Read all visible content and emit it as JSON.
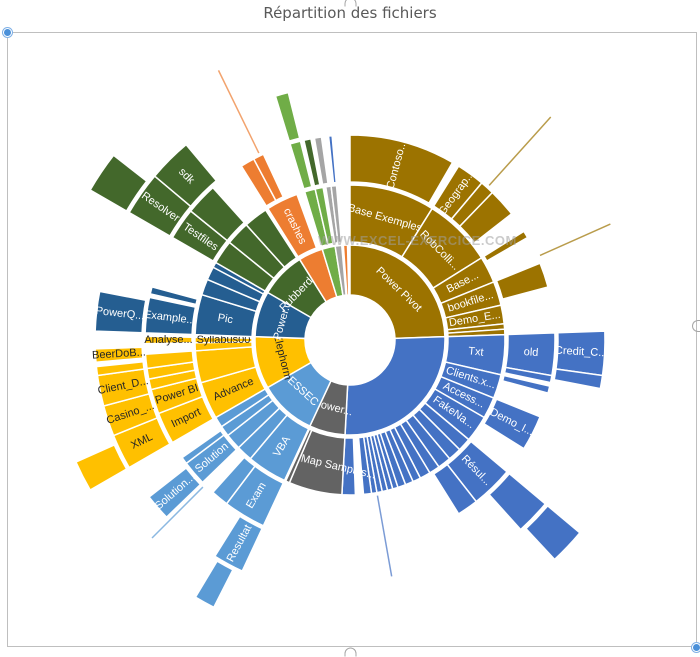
{
  "chart_data": {
    "type": "sunburst",
    "title": "Répartition des fichiers",
    "center": [
      350,
      340
    ],
    "ring_radii": [
      [
        45,
        95
      ],
      [
        98,
        155
      ],
      [
        158,
        205
      ],
      [
        208,
        255
      ]
    ],
    "colors": {
      "gold": "#9c7300",
      "blue": "#4472c4",
      "grey": "#636363",
      "lightblue": "#5b9bd5",
      "yellow": "#ffc000",
      "darkblue": "#255e91",
      "green": "#43682b",
      "orange": "#ed7d31",
      "lightgreen": "#70ad47",
      "silver": "#a5a5a5"
    },
    "segments": [
      {
        "ring": 0,
        "start": 0,
        "end": 88,
        "color": "gold",
        "label": "Power Pivot"
      },
      {
        "ring": 0,
        "start": 88,
        "end": 183,
        "color": "blue",
        "label": ""
      },
      {
        "ring": 0,
        "start": 183,
        "end": 205,
        "color": "grey",
        "label": "Power..."
      },
      {
        "ring": 0,
        "start": 205,
        "end": 240,
        "color": "lightblue",
        "label": "ESSEC"
      },
      {
        "ring": 0,
        "start": 240,
        "end": 272,
        "color": "yellow",
        "label": "Elephorm"
      },
      {
        "ring": 0,
        "start": 272,
        "end": 300,
        "color": "darkblue",
        "label": "Power..."
      },
      {
        "ring": 0,
        "start": 300,
        "end": 328,
        "color": "green",
        "label": "Rubberd..."
      },
      {
        "ring": 0,
        "start": 328,
        "end": 343,
        "color": "orange",
        "label": ""
      },
      {
        "ring": 0,
        "start": 343,
        "end": 351,
        "color": "lightgreen",
        "label": ""
      },
      {
        "ring": 0,
        "start": 351,
        "end": 355,
        "color": "silver",
        "label": ""
      },
      {
        "ring": 0,
        "start": 356,
        "end": 358.5,
        "color": "orange",
        "label": ""
      },
      {
        "ring": 1,
        "start": 0,
        "end": 32,
        "color": "gold",
        "label": "Base Exemples"
      },
      {
        "ring": 1,
        "start": 32,
        "end": 58,
        "color": "gold",
        "label": "RobColli..."
      },
      {
        "ring": 1,
        "start": 58,
        "end": 68,
        "color": "gold",
        "label": "Base..."
      },
      {
        "ring": 1,
        "start": 68,
        "end": 77,
        "color": "gold",
        "label": "bookfile..."
      },
      {
        "ring": 1,
        "start": 77,
        "end": 84,
        "color": "gold",
        "label": "Demo_E..."
      },
      {
        "ring": 1,
        "start": 84,
        "end": 86,
        "color": "gold",
        "label": ""
      },
      {
        "ring": 1,
        "start": 86,
        "end": 88,
        "color": "gold",
        "label": ""
      },
      {
        "ring": 1,
        "start": 88,
        "end": 103,
        "color": "blue",
        "label": "Txt"
      },
      {
        "ring": 1,
        "start": 103,
        "end": 112,
        "color": "blue",
        "label": "Clients.x..."
      },
      {
        "ring": 1,
        "start": 112,
        "end": 120,
        "color": "blue",
        "label": "Access..."
      },
      {
        "ring": 1,
        "start": 120,
        "end": 130,
        "color": "blue",
        "label": "FakeNa..."
      },
      {
        "ring": 1,
        "start": 130,
        "end": 135,
        "color": "blue",
        "label": ""
      },
      {
        "ring": 1,
        "start": 135,
        "end": 140,
        "color": "blue",
        "label": ""
      },
      {
        "ring": 1,
        "start": 140,
        "end": 145,
        "color": "blue",
        "label": ""
      },
      {
        "ring": 1,
        "start": 145,
        "end": 149,
        "color": "blue",
        "label": ""
      },
      {
        "ring": 1,
        "start": 149,
        "end": 153,
        "color": "blue",
        "label": ""
      },
      {
        "ring": 1,
        "start": 153,
        "end": 156,
        "color": "blue",
        "label": ""
      },
      {
        "ring": 1,
        "start": 156,
        "end": 159,
        "color": "blue",
        "label": ""
      },
      {
        "ring": 1,
        "start": 159,
        "end": 162,
        "color": "blue",
        "label": ""
      },
      {
        "ring": 1,
        "start": 162,
        "end": 164,
        "color": "blue",
        "label": ""
      },
      {
        "ring": 1,
        "start": 164,
        "end": 166,
        "color": "blue",
        "label": ""
      },
      {
        "ring": 1,
        "start": 166,
        "end": 168,
        "color": "blue",
        "label": ""
      },
      {
        "ring": 1,
        "start": 168,
        "end": 170,
        "color": "blue",
        "label": ""
      },
      {
        "ring": 1,
        "start": 170,
        "end": 172,
        "color": "blue",
        "label": ""
      },
      {
        "ring": 1,
        "start": 172,
        "end": 175,
        "color": "blue",
        "label": ""
      },
      {
        "ring": 1,
        "start": 178,
        "end": 183,
        "color": "blue",
        "label": ""
      },
      {
        "ring": 1,
        "start": 183,
        "end": 203,
        "color": "grey",
        "label": "Power Map Samples..."
      },
      {
        "ring": 1,
        "start": 203,
        "end": 204.5,
        "color": "grey",
        "label": ""
      },
      {
        "ring": 1,
        "start": 205,
        "end": 220,
        "color": "lightblue",
        "label": "VBA"
      },
      {
        "ring": 1,
        "start": 220,
        "end": 226,
        "color": "lightblue",
        "label": ""
      },
      {
        "ring": 1,
        "start": 226,
        "end": 232,
        "color": "lightblue",
        "label": ""
      },
      {
        "ring": 1,
        "start": 232,
        "end": 236,
        "color": "lightblue",
        "label": ""
      },
      {
        "ring": 1,
        "start": 236,
        "end": 240,
        "color": "lightblue",
        "label": ""
      },
      {
        "ring": 1,
        "start": 240,
        "end": 254,
        "color": "yellow",
        "label": "Advance"
      },
      {
        "ring": 1,
        "start": 254,
        "end": 266,
        "color": "yellow",
        "label": ""
      },
      {
        "ring": 1,
        "start": 266,
        "end": 269,
        "color": "yellow",
        "label": ""
      },
      {
        "ring": 1,
        "start": 269,
        "end": 271,
        "color": "yellow",
        "label": "Syllabus00"
      },
      {
        "ring": 1,
        "start": 272,
        "end": 287,
        "color": "darkblue",
        "label": "Pic"
      },
      {
        "ring": 1,
        "start": 287,
        "end": 293,
        "color": "darkblue",
        "label": ""
      },
      {
        "ring": 1,
        "start": 293,
        "end": 298,
        "color": "darkblue",
        "label": ""
      },
      {
        "ring": 1,
        "start": 298,
        "end": 300,
        "color": "darkblue",
        "label": ""
      },
      {
        "ring": 1,
        "start": 300,
        "end": 309,
        "color": "green",
        "label": ""
      },
      {
        "ring": 1,
        "start": 309,
        "end": 318,
        "color": "green",
        "label": ""
      },
      {
        "ring": 1,
        "start": 318,
        "end": 327,
        "color": "green",
        "label": ""
      },
      {
        "ring": 1,
        "start": 328,
        "end": 340,
        "color": "orange",
        "label": "crashes"
      },
      {
        "ring": 1,
        "start": 343,
        "end": 347,
        "color": "lightgreen",
        "label": ""
      },
      {
        "ring": 1,
        "start": 347,
        "end": 350,
        "color": "lightgreen",
        "label": ""
      },
      {
        "ring": 1,
        "start": 351,
        "end": 353,
        "color": "silver",
        "label": ""
      },
      {
        "ring": 1,
        "start": 353,
        "end": 355,
        "color": "silver",
        "label": ""
      },
      {
        "ring": 2,
        "start": 0,
        "end": 30,
        "color": "gold",
        "label": "Contoso..."
      },
      {
        "ring": 2,
        "start": 32,
        "end": 40,
        "color": "gold",
        "label": "Geograp..."
      },
      {
        "ring": 2,
        "start": 40,
        "end": 44,
        "color": "gold",
        "label": ""
      },
      {
        "ring": 2,
        "start": 44,
        "end": 52,
        "color": "gold",
        "label": ""
      },
      {
        "ring": 2,
        "start": 58,
        "end": 60,
        "color": "gold",
        "label": ""
      },
      {
        "ring": 2,
        "start": 68,
        "end": 75,
        "color": "gold",
        "label": ""
      },
      {
        "ring": 2,
        "start": 88,
        "end": 100,
        "color": "blue",
        "label": "old"
      },
      {
        "ring": 2,
        "start": 100,
        "end": 102,
        "color": "blue",
        "label": ""
      },
      {
        "ring": 2,
        "start": 103,
        "end": 105,
        "color": "blue",
        "label": ""
      },
      {
        "ring": 2,
        "start": 112,
        "end": 122,
        "color": "blue",
        "label": "Demo_I..."
      },
      {
        "ring": 2,
        "start": 130,
        "end": 142,
        "color": "blue",
        "label": "Résul..."
      },
      {
        "ring": 2,
        "start": 142,
        "end": 148,
        "color": "blue",
        "label": ""
      },
      {
        "ring": 2,
        "start": 205,
        "end": 217,
        "color": "lightblue",
        "label": "Exam"
      },
      {
        "ring": 2,
        "start": 217,
        "end": 222,
        "color": "lightblue",
        "label": ""
      },
      {
        "ring": 2,
        "start": 226,
        "end": 233,
        "color": "lightblue",
        "label": "Solution"
      },
      {
        "ring": 2,
        "start": 233,
        "end": 235,
        "color": "lightblue",
        "label": ""
      },
      {
        "ring": 2,
        "start": 240,
        "end": 249,
        "color": "yellow",
        "label": "Import"
      },
      {
        "ring": 2,
        "start": 249,
        "end": 256,
        "color": "yellow",
        "label": "Power BI"
      },
      {
        "ring": 2,
        "start": 256,
        "end": 259,
        "color": "yellow",
        "label": ""
      },
      {
        "ring": 2,
        "start": 259,
        "end": 262,
        "color": "yellow",
        "label": ""
      },
      {
        "ring": 2,
        "start": 262,
        "end": 266,
        "color": "yellow",
        "label": ""
      },
      {
        "ring": 2,
        "start": 269,
        "end": 271,
        "color": "yellow",
        "label": "Analyse..."
      },
      {
        "ring": 2,
        "start": 272,
        "end": 282,
        "color": "darkblue",
        "label": "Example..."
      },
      {
        "ring": 2,
        "start": 283,
        "end": 285,
        "color": "darkblue",
        "label": ""
      },
      {
        "ring": 2,
        "start": 300,
        "end": 309,
        "color": "green",
        "label": "Testfiles"
      },
      {
        "ring": 2,
        "start": 309,
        "end": 318,
        "color": "green",
        "label": ""
      },
      {
        "ring": 2,
        "start": 328,
        "end": 332,
        "color": "orange",
        "label": ""
      },
      {
        "ring": 2,
        "start": 332,
        "end": 335,
        "color": "orange",
        "label": ""
      },
      {
        "ring": 2,
        "start": 343,
        "end": 346,
        "color": "lightgreen",
        "label": ""
      },
      {
        "ring": 2,
        "start": 347,
        "end": 349,
        "color": "green",
        "label": ""
      },
      {
        "ring": 2,
        "start": 350,
        "end": 352,
        "color": "silver",
        "label": ""
      },
      {
        "ring": 2,
        "start": 354,
        "end": 355,
        "color": "blue",
        "label": ""
      },
      {
        "ring": 3,
        "start": 88,
        "end": 98,
        "color": "blue",
        "label": "Credit_C..."
      },
      {
        "ring": 3,
        "start": 98,
        "end": 101,
        "color": "blue",
        "label": ""
      },
      {
        "ring": 3,
        "start": 130,
        "end": 138,
        "color": "blue",
        "label": ""
      },
      {
        "ring": 3,
        "start": 205,
        "end": 212,
        "color": "lightblue",
        "label": "Resultat"
      },
      {
        "ring": 3,
        "start": 226,
        "end": 232,
        "color": "lightblue",
        "label": "Solution..."
      },
      {
        "ring": 3,
        "start": 240,
        "end": 248,
        "color": "yellow",
        "label": "XML"
      },
      {
        "ring": 3,
        "start": 248,
        "end": 255,
        "color": "yellow",
        "label": "Casino_..."
      },
      {
        "ring": 3,
        "start": 255,
        "end": 262,
        "color": "yellow",
        "label": "Client_D..."
      },
      {
        "ring": 3,
        "start": 262,
        "end": 264,
        "color": "yellow",
        "label": ""
      },
      {
        "ring": 3,
        "start": 265,
        "end": 268,
        "color": "yellow",
        "label": "BeerDoB..."
      },
      {
        "ring": 3,
        "start": 272,
        "end": 281,
        "color": "darkblue",
        "label": "PowerQ..."
      },
      {
        "ring": 3,
        "start": 300,
        "end": 310,
        "color": "green",
        "label": "Resolver"
      },
      {
        "ring": 3,
        "start": 310,
        "end": 320,
        "color": "green",
        "label": "sdk"
      },
      {
        "ring": 3,
        "start": 343,
        "end": 346,
        "color": "lightgreen",
        "label": ""
      },
      {
        "ring": 4,
        "start": 240,
        "end": 246,
        "color": "yellow",
        "label": ""
      },
      {
        "ring": 4,
        "start": 207,
        "end": 211,
        "color": "lightblue",
        "label": ""
      },
      {
        "ring": 4,
        "start": 130,
        "end": 137,
        "color": "blue",
        "label": ""
      },
      {
        "ring": 4,
        "start": 300,
        "end": 308,
        "color": "green",
        "label": ""
      }
    ],
    "visible_labels": [
      "Power Pivot",
      "Base Exemples",
      "Contoso...",
      "Geograp...",
      "RobColli...",
      "Base...",
      "bookfile...",
      "Demo_E...",
      "Txt",
      "old",
      "Credit_C...",
      "Clients.x...",
      "Access...",
      "FakeNa...",
      "Demo_I...",
      "Résul...",
      "Power...",
      "Power Map Samples...",
      "ESSEC",
      "VBA",
      "Exam",
      "Resultat",
      "Solution",
      "Solution...",
      "Elephorm",
      "Advance",
      "Import",
      "Power BI",
      "XML",
      "Casino_...",
      "Client_D...",
      "BeerDoB...",
      "Analyse...",
      "Syllabus00",
      "Power...",
      "Pic",
      "Example...",
      "PowerQ...",
      "Rubberd...",
      "Testfiles",
      "Resolver",
      "sdk",
      "crashes"
    ],
    "legend": "none",
    "watermark": "WWW.EXCEL-EXERCICE.COM"
  },
  "header": {
    "title": "Répartition des fichiers"
  },
  "watermark": "WWW.EXCEL-EXERCICE.COM"
}
